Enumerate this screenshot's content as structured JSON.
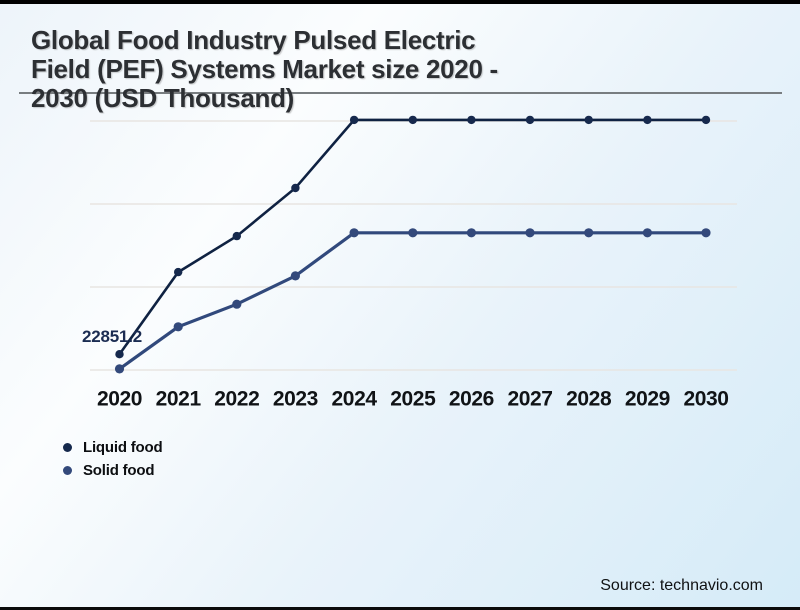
{
  "title": {
    "line1": "Global Food Industry Pulsed Electric",
    "line2": "Field (PEF) Systems Market size 2020 -",
    "line3": "2030 (USD Thousand)"
  },
  "source": {
    "label": "Source: technavio.com"
  },
  "legend": [
    {
      "label": "Liquid food",
      "color": "#16294d"
    },
    {
      "label": "Solid food",
      "color": "#33497b"
    }
  ],
  "colors": {
    "liquid_line": "#0f2242",
    "solid_line": "#31497c",
    "gridline": "#e8e5e2",
    "background_tint": "#d5ebf8"
  },
  "chart_data": {
    "type": "line",
    "title": "Global Food Industry Pulsed Electric Field (PEF) Systems Market size 2020 - 2030 (USD Thousand)",
    "xlabel": "",
    "ylabel": "",
    "categories": [
      "2020",
      "2021",
      "2022",
      "2023",
      "2024",
      "2025",
      "2026",
      "2027",
      "2028",
      "2029",
      "2030"
    ],
    "series": [
      {
        "name": "Liquid food",
        "line_color": "#0f2242",
        "dot_color": "#16294d",
        "values": [
          22851.2,
          37700,
          44200,
          52900,
          65200,
          65200,
          65200,
          65200,
          65200,
          65200,
          65200
        ]
      },
      {
        "name": "Solid food",
        "line_color": "#31497c",
        "dot_color": "#33497b",
        "values": [
          20200,
          27800,
          31900,
          37000,
          44800,
          44800,
          44800,
          44800,
          44800,
          44800,
          44800
        ]
      }
    ],
    "data_labels": [
      {
        "series": "Liquid food",
        "category": "2020",
        "value": 22851.2,
        "text": "22851.2"
      }
    ],
    "ylim": [
      20000,
      65000
    ],
    "gridline_values": [
      20000,
      35000,
      50000,
      65000
    ],
    "grid": true,
    "legend_position": "bottom-left"
  }
}
